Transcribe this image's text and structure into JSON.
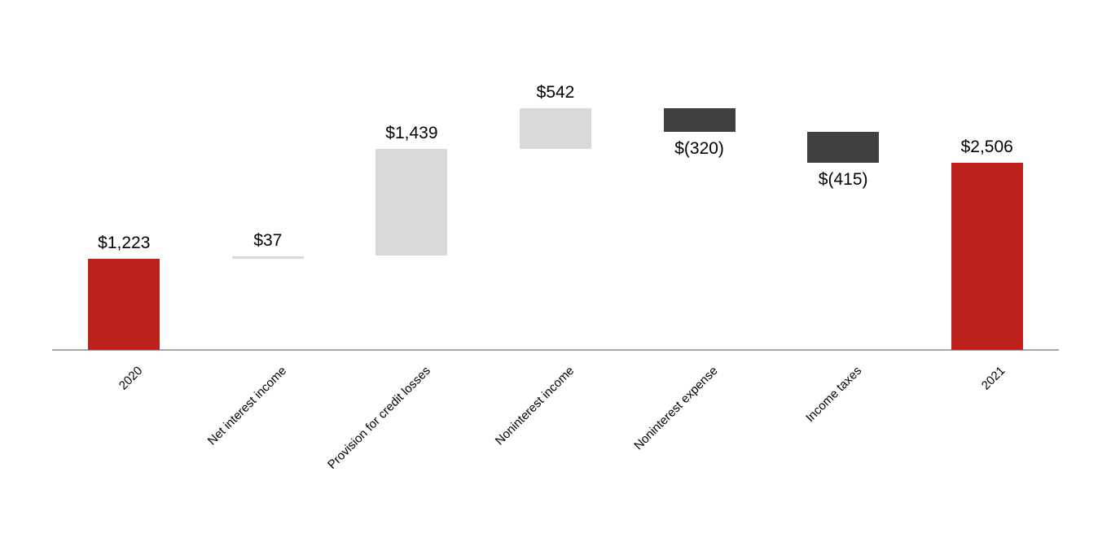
{
  "chart_data": {
    "type": "bar",
    "subtype": "waterfall",
    "categories": [
      "2020",
      "Net interest income",
      "Provision for credit losses",
      "Noninterest income",
      "Noninterest expense",
      "Income taxes",
      "2021"
    ],
    "values": [
      1223,
      37,
      1439,
      542,
      -320,
      -415,
      2506
    ],
    "labels": [
      "$1,223",
      "$37",
      "$1,439",
      "$542",
      "$(320)",
      "$(415)",
      "$2,506"
    ],
    "bar_kinds": [
      "total",
      "increase",
      "increase",
      "increase",
      "decrease",
      "decrease",
      "total"
    ],
    "cumulative": [
      1223,
      1260,
      2699,
      3241,
      2921,
      2506,
      2506
    ],
    "ylim": [
      0,
      3600
    ],
    "grid": false,
    "legend": false,
    "colors": {
      "total": "#BE211B",
      "increase": "#D9D9D9",
      "decrease": "#404040",
      "axis": "#A6A6A6",
      "label": "#000000"
    }
  }
}
